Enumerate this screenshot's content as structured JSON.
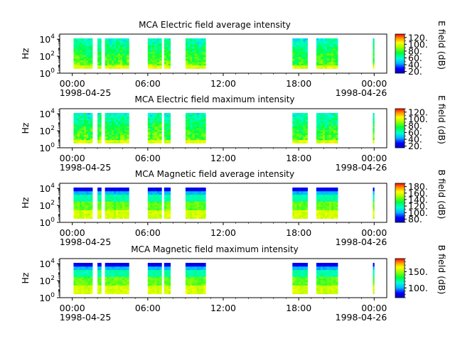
{
  "chart_data": [
    {
      "type": "heatmap",
      "title": "MCA  Electric field average intensity",
      "ylabel": "Hz",
      "yscale": "log",
      "ylim": [
        1,
        40000
      ],
      "y_ticks": [
        {
          "base": "10",
          "exp": "0"
        },
        {
          "base": "10",
          "exp": "2"
        },
        {
          "base": "10",
          "exp": "4"
        }
      ],
      "x_ticks": [
        "00:00",
        "06:00",
        "12:00",
        "18:00",
        "00:00"
      ],
      "x_dates": [
        "1998-04-25",
        "1998-04-26"
      ],
      "colorbar_label": "E field (dB)",
      "colorbar_ticks": [
        "20",
        "40",
        "60",
        "80",
        "100",
        "120"
      ],
      "colorbar_range": [
        15,
        130
      ],
      "data_intervals_hours": [
        [
          0.1,
          0.9
        ],
        [
          0.92,
          1.6
        ],
        [
          2.0,
          2.3
        ],
        [
          2.6,
          4.5
        ],
        [
          6.0,
          7.1
        ],
        [
          7.3,
          7.8
        ],
        [
          9.0,
          10.6
        ],
        [
          17.5,
          18.7
        ],
        [
          19.4,
          21.1
        ],
        [
          23.9,
          24.0
        ]
      ]
    },
    {
      "type": "heatmap",
      "title": "MCA  Electric field maximum intensity",
      "ylabel": "Hz",
      "yscale": "log",
      "ylim": [
        1,
        40000
      ],
      "y_ticks": [
        {
          "base": "10",
          "exp": "0"
        },
        {
          "base": "10",
          "exp": "2"
        },
        {
          "base": "10",
          "exp": "4"
        }
      ],
      "x_ticks": [
        "00:00",
        "06:00",
        "12:00",
        "18:00",
        "00:00"
      ],
      "x_dates": [
        "1998-04-25",
        "1998-04-26"
      ],
      "colorbar_label": "E field (dB)",
      "colorbar_ticks": [
        "20",
        "40",
        "60",
        "80",
        "100",
        "120"
      ],
      "colorbar_range": [
        15,
        130
      ],
      "data_intervals_hours": [
        [
          0.1,
          0.9
        ],
        [
          0.92,
          1.6
        ],
        [
          2.0,
          2.3
        ],
        [
          2.6,
          4.5
        ],
        [
          6.0,
          7.1
        ],
        [
          7.3,
          7.8
        ],
        [
          9.0,
          10.6
        ],
        [
          17.5,
          18.7
        ],
        [
          19.4,
          21.1
        ],
        [
          23.9,
          24.0
        ]
      ]
    },
    {
      "type": "heatmap",
      "title": "MCA  Magnetic field average intensity",
      "ylabel": "Hz",
      "yscale": "log",
      "ylim": [
        1,
        40000
      ],
      "y_ticks": [
        {
          "base": "10",
          "exp": "0"
        },
        {
          "base": "10",
          "exp": "2"
        },
        {
          "base": "10",
          "exp": "4"
        }
      ],
      "x_ticks": [
        "00:00",
        "06:00",
        "12:00",
        "18:00",
        "00:00"
      ],
      "x_dates": [
        "1998-04-25",
        "1998-04-26"
      ],
      "colorbar_label": "B field (dB)",
      "colorbar_ticks": [
        "80",
        "100",
        "120",
        "140",
        "160",
        "180"
      ],
      "colorbar_range": [
        70,
        190
      ],
      "data_intervals_hours": [
        [
          0.1,
          0.9
        ],
        [
          0.92,
          1.6
        ],
        [
          2.0,
          2.3
        ],
        [
          2.6,
          4.5
        ],
        [
          6.0,
          7.1
        ],
        [
          7.3,
          7.8
        ],
        [
          9.0,
          10.6
        ],
        [
          17.5,
          18.7
        ],
        [
          19.4,
          21.1
        ],
        [
          23.9,
          24.0
        ]
      ]
    },
    {
      "type": "heatmap",
      "title": "MCA  Magnetic field maximum intensity",
      "ylabel": "Hz",
      "yscale": "log",
      "ylim": [
        1,
        40000
      ],
      "y_ticks": [
        {
          "base": "10",
          "exp": "0"
        },
        {
          "base": "10",
          "exp": "2"
        },
        {
          "base": "10",
          "exp": "4"
        }
      ],
      "x_ticks": [
        "00:00",
        "06:00",
        "12:00",
        "18:00",
        "00:00"
      ],
      "x_dates": [
        "1998-04-25",
        "1998-04-26"
      ],
      "colorbar_label": "B field (dB)",
      "colorbar_ticks": [
        "100",
        "150"
      ],
      "colorbar_range": [
        70,
        190
      ],
      "data_intervals_hours": [
        [
          0.1,
          0.9
        ],
        [
          0.92,
          1.6
        ],
        [
          2.0,
          2.3
        ],
        [
          2.6,
          4.5
        ],
        [
          6.0,
          7.1
        ],
        [
          7.3,
          7.8
        ],
        [
          9.0,
          10.6
        ],
        [
          17.5,
          18.7
        ],
        [
          19.4,
          21.1
        ],
        [
          23.9,
          24.0
        ]
      ]
    }
  ]
}
